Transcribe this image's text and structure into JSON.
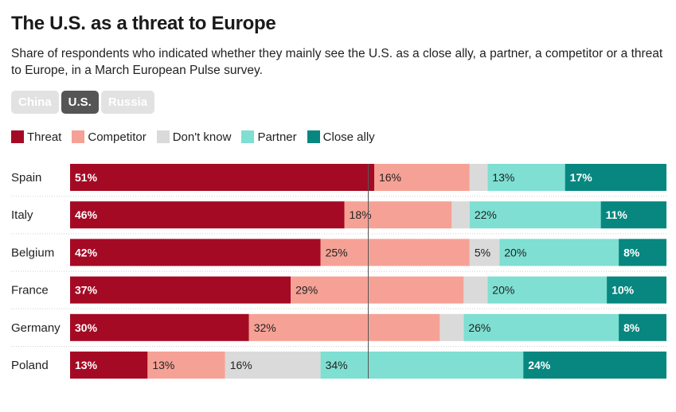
{
  "title": "The U.S. as a threat to Europe",
  "subtitle": "Share of respondents who indicated whether they mainly see the U.S. as a close ally, a partner, a competitor or a threat to Europe, in a March European Pulse survey.",
  "tabs": [
    {
      "label": "China",
      "active": false
    },
    {
      "label": "U.S.",
      "active": true
    },
    {
      "label": "Russia",
      "active": false
    }
  ],
  "legend": [
    {
      "label": "Threat",
      "color": "#a50a24"
    },
    {
      "label": "Competitor",
      "color": "#f6a195"
    },
    {
      "label": "Don't know",
      "color": "#dadada"
    },
    {
      "label": "Partner",
      "color": "#7edfd2"
    },
    {
      "label": "Close ally",
      "color": "#07877f"
    }
  ],
  "chart_data": {
    "type": "bar",
    "orientation": "horizontal",
    "stacked": true,
    "unit": "%",
    "categories": [
      "Spain",
      "Italy",
      "Belgium",
      "France",
      "Germany",
      "Poland"
    ],
    "series": [
      {
        "name": "Threat",
        "color": "#a50a24",
        "label_color": "#ffffff",
        "values": [
          51,
          46,
          42,
          37,
          30,
          13
        ],
        "labels": [
          "51%",
          "46%",
          "42%",
          "37%",
          "30%",
          "13%"
        ]
      },
      {
        "name": "Competitor",
        "color": "#f6a195",
        "label_color": "#222222",
        "values": [
          16,
          18,
          25,
          29,
          32,
          13
        ],
        "labels": [
          "16%",
          "18%",
          "25%",
          "29%",
          "32%",
          "13%"
        ]
      },
      {
        "name": "Don't know",
        "color": "#dadada",
        "label_color": "#222222",
        "values": [
          3,
          3,
          5,
          4,
          4,
          16
        ],
        "labels": [
          "",
          "",
          "5%",
          "",
          "",
          "16%"
        ]
      },
      {
        "name": "Partner",
        "color": "#7edfd2",
        "label_color": "#222222",
        "values": [
          13,
          22,
          20,
          20,
          26,
          34
        ],
        "labels": [
          "13%",
          "22%",
          "20%",
          "20%",
          "26%",
          "34%"
        ]
      },
      {
        "name": "Close ally",
        "color": "#07877f",
        "label_color": "#ffffff",
        "values": [
          17,
          11,
          8,
          10,
          8,
          24
        ],
        "labels": [
          "17%",
          "11%",
          "8%",
          "10%",
          "8%",
          "24%"
        ]
      }
    ],
    "xlim": [
      0,
      100
    ],
    "reference_line": 50
  }
}
